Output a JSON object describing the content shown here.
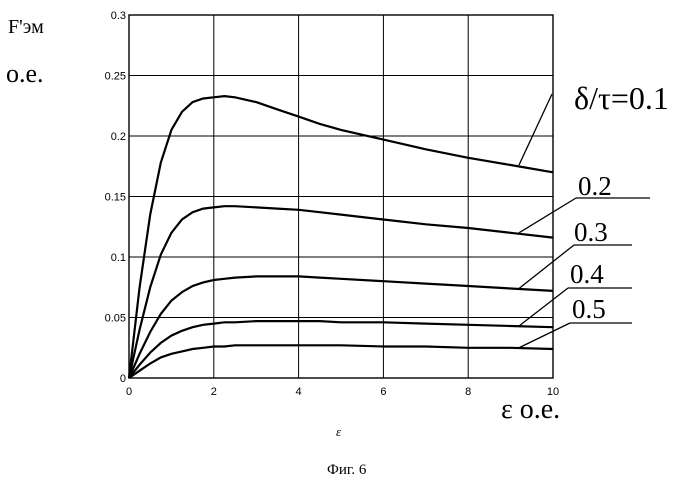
{
  "chart_data": {
    "type": "line",
    "ylabel_top": "F'эм",
    "ylabel_bottom": "о.е.",
    "xlabel_symbol": "ε",
    "xlabel_unit": "ε о.е.",
    "caption": "Фиг. 6",
    "xlim": [
      0,
      10
    ],
    "ylim": [
      0,
      0.3
    ],
    "x_ticks": [
      "0",
      "2",
      "4",
      "6",
      "8",
      "10"
    ],
    "y_ticks": [
      "0",
      "0.05",
      "0.1",
      "0.15",
      "0.2",
      "0.25",
      "0.3"
    ],
    "grid": true,
    "x": [
      0,
      0.25,
      0.5,
      0.75,
      1,
      1.25,
      1.5,
      1.75,
      2,
      2.25,
      2.5,
      3,
      3.5,
      4,
      4.5,
      5,
      6,
      7,
      8,
      9,
      10
    ],
    "series": [
      {
        "name": "δ/τ=0.1",
        "values": [
          0,
          0.075,
          0.135,
          0.178,
          0.205,
          0.22,
          0.228,
          0.231,
          0.232,
          0.233,
          0.232,
          0.228,
          0.222,
          0.216,
          0.21,
          0.205,
          0.197,
          0.189,
          0.182,
          0.176,
          0.17
        ]
      },
      {
        "name": "0.2",
        "values": [
          0,
          0.04,
          0.075,
          0.102,
          0.12,
          0.131,
          0.137,
          0.14,
          0.141,
          0.142,
          0.142,
          0.141,
          0.14,
          0.139,
          0.137,
          0.135,
          0.131,
          0.127,
          0.124,
          0.12,
          0.116
        ]
      },
      {
        "name": "0.3",
        "values": [
          0,
          0.02,
          0.038,
          0.053,
          0.064,
          0.071,
          0.076,
          0.079,
          0.081,
          0.082,
          0.083,
          0.084,
          0.084,
          0.084,
          0.083,
          0.082,
          0.08,
          0.078,
          0.076,
          0.074,
          0.072
        ]
      },
      {
        "name": "0.4",
        "values": [
          0,
          0.011,
          0.021,
          0.029,
          0.035,
          0.039,
          0.042,
          0.044,
          0.045,
          0.046,
          0.046,
          0.047,
          0.047,
          0.047,
          0.047,
          0.046,
          0.046,
          0.045,
          0.044,
          0.043,
          0.042
        ]
      },
      {
        "name": "0.5",
        "values": [
          0,
          0.006,
          0.012,
          0.017,
          0.02,
          0.022,
          0.024,
          0.025,
          0.026,
          0.026,
          0.027,
          0.027,
          0.027,
          0.027,
          0.027,
          0.027,
          0.026,
          0.026,
          0.025,
          0.025,
          0.024
        ]
      }
    ]
  }
}
